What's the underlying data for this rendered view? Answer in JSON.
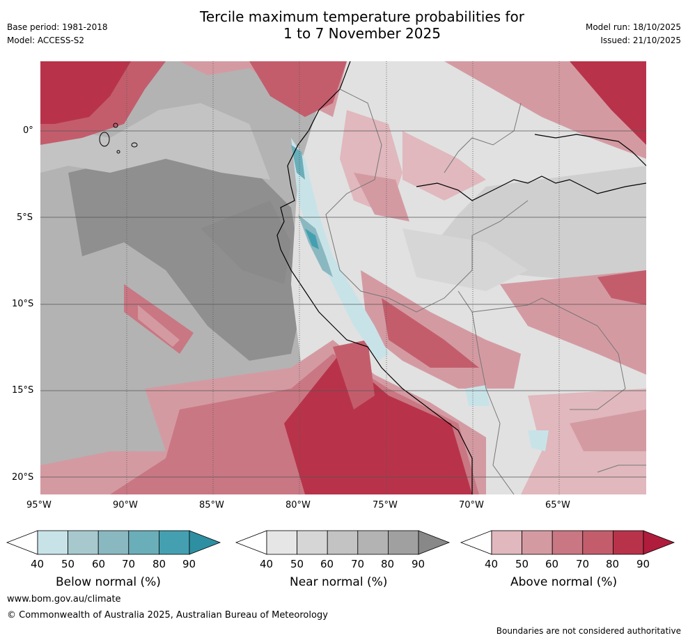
{
  "header": {
    "title_line1": "Tercile maximum temperature probabilities for",
    "title_line2": "1 to 7 November 2025",
    "base_period": "Base period: 1981-2018",
    "model": "Model: ACCESS-S2",
    "model_run": "Model run: 18/10/2025",
    "issued": "Issued: 21/10/2025"
  },
  "map": {
    "region": "Western South America and eastern Pacific",
    "lon_labels": [
      "95°W",
      "90°W",
      "85°W",
      "80°W",
      "75°W",
      "70°W",
      "65°W"
    ],
    "lat_labels": [
      "0°",
      "5°S",
      "10°S",
      "15°S",
      "20°S"
    ]
  },
  "colorbars": [
    {
      "name": "below",
      "label": "Below normal (%)",
      "ticks": [
        "40",
        "50",
        "60",
        "70",
        "80",
        "90"
      ],
      "colors": [
        "#ffffff",
        "#c8e3e8",
        "#a7c9ce",
        "#8ab8c1",
        "#6aaeb9",
        "#44a0b0",
        "#2e8fa3"
      ]
    },
    {
      "name": "near",
      "label": "Near normal (%)",
      "ticks": [
        "40",
        "50",
        "60",
        "70",
        "80",
        "90"
      ],
      "colors": [
        "#ffffff",
        "#e6e6e6",
        "#d6d6d6",
        "#c3c3c3",
        "#b3b3b3",
        "#a0a0a0",
        "#888888"
      ]
    },
    {
      "name": "above",
      "label": "Above normal (%)",
      "ticks": [
        "40",
        "50",
        "60",
        "70",
        "80",
        "90"
      ],
      "colors": [
        "#ffffff",
        "#e0b8bd",
        "#d49aa2",
        "#c97783",
        "#c35d6c",
        "#b8334a",
        "#b01c3c"
      ]
    }
  ],
  "footer": {
    "website": "www.bom.gov.au/climate",
    "copyright": "© Commonwealth of Australia 2025, Australian Bureau of Meteorology",
    "disclaimer": "Boundaries are not considered authoritative"
  }
}
